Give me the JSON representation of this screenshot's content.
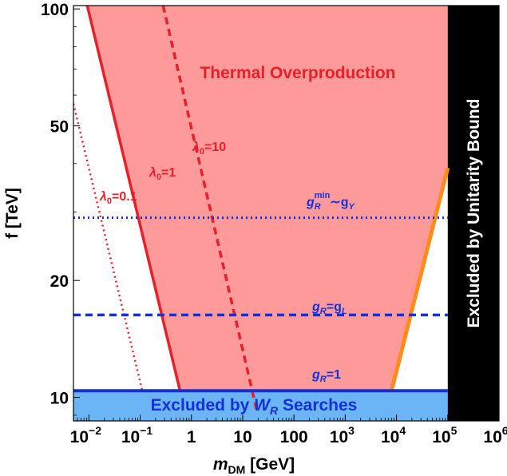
{
  "chart_data": {
    "type": "area",
    "x_scale": "log",
    "y_scale": "log",
    "xlim": [
      0.005,
      1000000
    ],
    "ylim": [
      8.7,
      102
    ],
    "xlabel": {
      "main": "m",
      "sub": "DM",
      "unit": " [GeV]"
    },
    "ylabel": "f [TeV]",
    "x_ticks": [
      {
        "value": 0.01,
        "base": "10",
        "exp": "−2"
      },
      {
        "value": 0.1,
        "base": "10",
        "exp": "−1"
      },
      {
        "value": 1,
        "base": "1",
        "exp": ""
      },
      {
        "value": 10,
        "base": "10",
        "exp": ""
      },
      {
        "value": 100,
        "base": "100",
        "exp": ""
      },
      {
        "value": 1000,
        "base": "10",
        "exp": "3"
      },
      {
        "value": 10000,
        "base": "10",
        "exp": "4"
      },
      {
        "value": 100000,
        "base": "10",
        "exp": "5"
      },
      {
        "value": 1000000,
        "base": "10",
        "exp": "6"
      }
    ],
    "y_ticks": [
      {
        "value": 10,
        "label": "10"
      },
      {
        "value": 20,
        "label": "20"
      },
      {
        "value": 50,
        "label": "50"
      },
      {
        "value": 100,
        "label": "100"
      }
    ],
    "regions": [
      {
        "name": "Thermal Overproduction",
        "color": "#ff9a9a",
        "polygon": [
          [
            0.0093,
            102
          ],
          [
            0.6,
            10.4
          ],
          [
            8000,
            10.4
          ],
          [
            100000,
            39
          ],
          [
            100000,
            102
          ]
        ]
      },
      {
        "name": "Excluded by W_R Searches",
        "color": "#6bb4f6",
        "y_range": [
          8.7,
          10.4
        ]
      },
      {
        "name": "Excluded by Unitarity Bound",
        "color": "#000000",
        "x_range": [
          100000,
          1000000
        ]
      }
    ],
    "series": [
      {
        "name": "λ0=1",
        "color": "#e8202a",
        "style": "solid",
        "width": 3.5,
        "points": [
          [
            0.0093,
            102
          ],
          [
            0.6,
            10.4
          ]
        ]
      },
      {
        "name": "λ0=10",
        "color": "#e8202a",
        "style": "dashed",
        "width": 3.5,
        "points": [
          [
            0.28,
            102
          ],
          [
            19,
            9.2
          ]
        ]
      },
      {
        "name": "λ0=0.1",
        "color": "#e8202a",
        "style": "dotted",
        "width": 2.5,
        "points": [
          [
            0.005,
            57
          ],
          [
            0.11,
            10.4
          ]
        ]
      },
      {
        "name": "orange boundary",
        "color": "#ff8c1a",
        "style": "solid",
        "width": 5,
        "points": [
          [
            8000,
            10.4
          ],
          [
            100000,
            39
          ]
        ]
      },
      {
        "name": "gR=1",
        "color": "#1530d8",
        "style": "solid",
        "width": 4,
        "points": [
          [
            0.005,
            10.4
          ],
          [
            100000,
            10.4
          ]
        ]
      },
      {
        "name": "gR=gL",
        "color": "#1530d8",
        "style": "dashed",
        "width": 3.5,
        "points": [
          [
            0.005,
            16.3
          ],
          [
            100000,
            16.3
          ]
        ]
      },
      {
        "name": "gR_min~gY",
        "color": "#1530d8",
        "style": "dotted",
        "width": 3,
        "points": [
          [
            0.005,
            29
          ],
          [
            100000,
            29
          ]
        ]
      }
    ],
    "annotations": {
      "thermal": {
        "text": "Thermal Overproduction",
        "color": "#e8202a"
      },
      "wr": {
        "prefix": "Excluded by ",
        "main": "W",
        "sub": "R",
        "suffix": " Searches",
        "color": "#1530d8"
      },
      "unitarity": {
        "text": "Excluded by Unitarity Bound",
        "color": "#ffffff"
      },
      "lam10": {
        "main": "λ",
        "sub": "0",
        "rest": "=10",
        "color": "#e8202a"
      },
      "lam1": {
        "main": "λ",
        "sub": "0",
        "rest": "=1",
        "color": "#e8202a"
      },
      "lam01": {
        "main": "λ",
        "sub": "0",
        "rest": "=0.1",
        "color": "#e8202a"
      },
      "gmin": {
        "main": "g",
        "sub": "R",
        "sup": "min",
        "rest": "∼g",
        "sub2": "Y",
        "color": "#1530d8"
      },
      "grgl": {
        "main": "g",
        "sub": "R",
        "rest": "=g",
        "sub2": "L",
        "color": "#1530d8"
      },
      "gr1": {
        "main": "g",
        "sub": "R",
        "rest": "=1",
        "color": "#1530d8"
      }
    }
  }
}
